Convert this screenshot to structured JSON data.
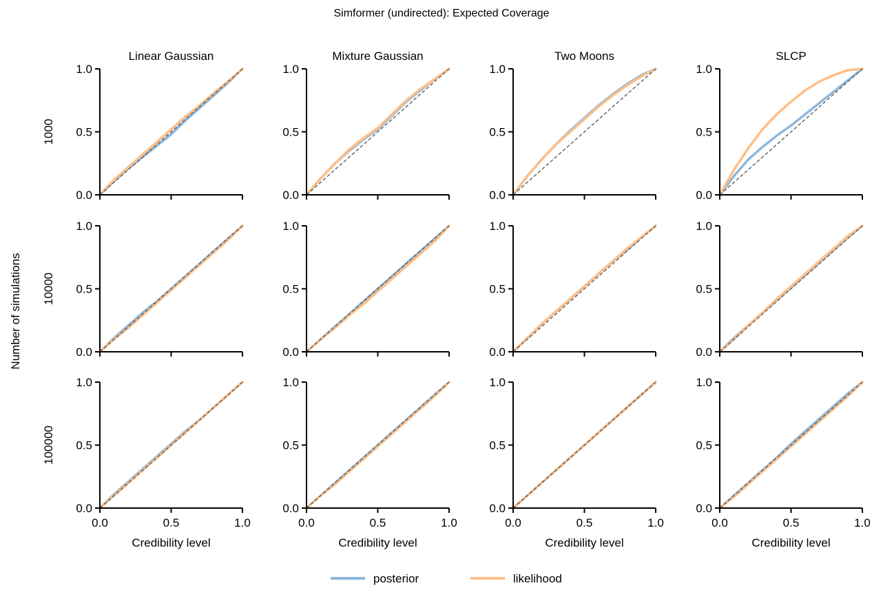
{
  "title": "Simformer (undirected): Expected Coverage",
  "ylabel": "Number of simulations",
  "xlabel": "Credibility level",
  "colors": {
    "posterior": "#8db7dc",
    "likelihood": "#ffbe86",
    "reference": "#666666"
  },
  "legend": [
    {
      "key": "posterior",
      "label": "posterior"
    },
    {
      "key": "likelihood",
      "label": "likelihood"
    }
  ],
  "chart_data": {
    "type": "line",
    "columns": [
      "Linear Gaussian",
      "Mixture Gaussian",
      "Two Moons",
      "SLCP"
    ],
    "rows": [
      "1000",
      "10000",
      "100000"
    ],
    "xlim": [
      0,
      1
    ],
    "ylim": [
      0,
      1
    ],
    "xticks": [
      "0.0",
      "0.5",
      "1.0"
    ],
    "yticks": [
      "0.0",
      "0.5",
      "1.0"
    ],
    "reference_line": "diagonal",
    "x": [
      0,
      0.1,
      0.2,
      0.3,
      0.4,
      0.5,
      0.6,
      0.7,
      0.8,
      0.9,
      1.0
    ],
    "panels": [
      {
        "row": "1000",
        "column": "Linear Gaussian",
        "series": [
          {
            "name": "posterior",
            "values": [
              0,
              0.11,
              0.21,
              0.3,
              0.39,
              0.48,
              0.59,
              0.69,
              0.79,
              0.89,
              1.0
            ]
          },
          {
            "name": "likelihood",
            "values": [
              0,
              0.12,
              0.22,
              0.32,
              0.42,
              0.52,
              0.62,
              0.71,
              0.81,
              0.9,
              1.0
            ]
          }
        ]
      },
      {
        "row": "1000",
        "column": "Mixture Gaussian",
        "series": [
          {
            "name": "posterior",
            "values": [
              0,
              0.13,
              0.25,
              0.35,
              0.44,
              0.52,
              0.63,
              0.74,
              0.83,
              0.92,
              1.0
            ]
          },
          {
            "name": "likelihood",
            "values": [
              0,
              0.13,
              0.25,
              0.36,
              0.45,
              0.53,
              0.64,
              0.75,
              0.84,
              0.92,
              1.0
            ]
          }
        ]
      },
      {
        "row": "1000",
        "column": "Two Moons",
        "series": [
          {
            "name": "posterior",
            "values": [
              0,
              0.15,
              0.28,
              0.4,
              0.51,
              0.61,
              0.71,
              0.8,
              0.88,
              0.95,
              1.0
            ]
          },
          {
            "name": "likelihood",
            "values": [
              0,
              0.15,
              0.28,
              0.4,
              0.5,
              0.6,
              0.7,
              0.79,
              0.87,
              0.94,
              1.0
            ]
          }
        ]
      },
      {
        "row": "1000",
        "column": "SLCP",
        "series": [
          {
            "name": "posterior",
            "values": [
              0,
              0.15,
              0.28,
              0.38,
              0.47,
              0.55,
              0.64,
              0.73,
              0.82,
              0.91,
              1.0
            ]
          },
          {
            "name": "likelihood",
            "values": [
              0,
              0.2,
              0.37,
              0.52,
              0.64,
              0.74,
              0.83,
              0.9,
              0.95,
              0.99,
              1.0
            ]
          }
        ]
      },
      {
        "row": "10000",
        "column": "Linear Gaussian",
        "series": [
          {
            "name": "posterior",
            "values": [
              0,
              0.11,
              0.21,
              0.31,
              0.4,
              0.5,
              0.6,
              0.7,
              0.8,
              0.9,
              1.0
            ]
          },
          {
            "name": "likelihood",
            "values": [
              0,
              0.1,
              0.19,
              0.29,
              0.39,
              0.49,
              0.59,
              0.69,
              0.79,
              0.89,
              1.0
            ]
          }
        ]
      },
      {
        "row": "10000",
        "column": "Mixture Gaussian",
        "series": [
          {
            "name": "posterior",
            "values": [
              0,
              0.1,
              0.2,
              0.3,
              0.4,
              0.5,
              0.6,
              0.7,
              0.8,
              0.9,
              1.0
            ]
          },
          {
            "name": "likelihood",
            "values": [
              0,
              0.1,
              0.19,
              0.29,
              0.38,
              0.48,
              0.58,
              0.68,
              0.78,
              0.88,
              1.0
            ]
          }
        ]
      },
      {
        "row": "10000",
        "column": "Two Moons",
        "series": [
          {
            "name": "posterior",
            "values": [
              0,
              0.11,
              0.22,
              0.32,
              0.42,
              0.52,
              0.62,
              0.72,
              0.81,
              0.91,
              1.0
            ]
          },
          {
            "name": "likelihood",
            "values": [
              0,
              0.11,
              0.22,
              0.32,
              0.42,
              0.52,
              0.62,
              0.72,
              0.82,
              0.91,
              1.0
            ]
          }
        ]
      },
      {
        "row": "10000",
        "column": "SLCP",
        "series": [
          {
            "name": "posterior",
            "values": [
              0,
              0.11,
              0.21,
              0.31,
              0.41,
              0.51,
              0.61,
              0.71,
              0.81,
              0.91,
              1.0
            ]
          },
          {
            "name": "likelihood",
            "values": [
              0,
              0.1,
              0.21,
              0.31,
              0.42,
              0.52,
              0.62,
              0.72,
              0.82,
              0.92,
              1.0
            ]
          }
        ]
      },
      {
        "row": "100000",
        "column": "Linear Gaussian",
        "series": [
          {
            "name": "posterior",
            "values": [
              0,
              0.11,
              0.21,
              0.31,
              0.41,
              0.51,
              0.61,
              0.7,
              0.8,
              0.9,
              1.0
            ]
          },
          {
            "name": "likelihood",
            "values": [
              0,
              0.1,
              0.2,
              0.3,
              0.4,
              0.5,
              0.6,
              0.7,
              0.8,
              0.9,
              1.0
            ]
          }
        ]
      },
      {
        "row": "100000",
        "column": "Mixture Gaussian",
        "series": [
          {
            "name": "posterior",
            "values": [
              0,
              0.1,
              0.2,
              0.3,
              0.4,
              0.5,
              0.6,
              0.7,
              0.8,
              0.9,
              1.0
            ]
          },
          {
            "name": "likelihood",
            "values": [
              0,
              0.1,
              0.19,
              0.29,
              0.39,
              0.49,
              0.59,
              0.69,
              0.79,
              0.89,
              1.0
            ]
          }
        ]
      },
      {
        "row": "100000",
        "column": "Two Moons",
        "series": [
          {
            "name": "posterior",
            "values": [
              0,
              0.1,
              0.2,
              0.3,
              0.4,
              0.5,
              0.6,
              0.7,
              0.8,
              0.9,
              1.0
            ]
          },
          {
            "name": "likelihood",
            "values": [
              0,
              0.1,
              0.2,
              0.3,
              0.4,
              0.5,
              0.6,
              0.7,
              0.8,
              0.9,
              1.0
            ]
          }
        ]
      },
      {
        "row": "100000",
        "column": "SLCP",
        "series": [
          {
            "name": "posterior",
            "values": [
              0,
              0.1,
              0.2,
              0.3,
              0.4,
              0.51,
              0.61,
              0.71,
              0.81,
              0.91,
              1.0
            ]
          },
          {
            "name": "likelihood",
            "values": [
              0,
              0.09,
              0.19,
              0.29,
              0.39,
              0.49,
              0.59,
              0.69,
              0.79,
              0.89,
              1.0
            ]
          }
        ]
      }
    ]
  }
}
